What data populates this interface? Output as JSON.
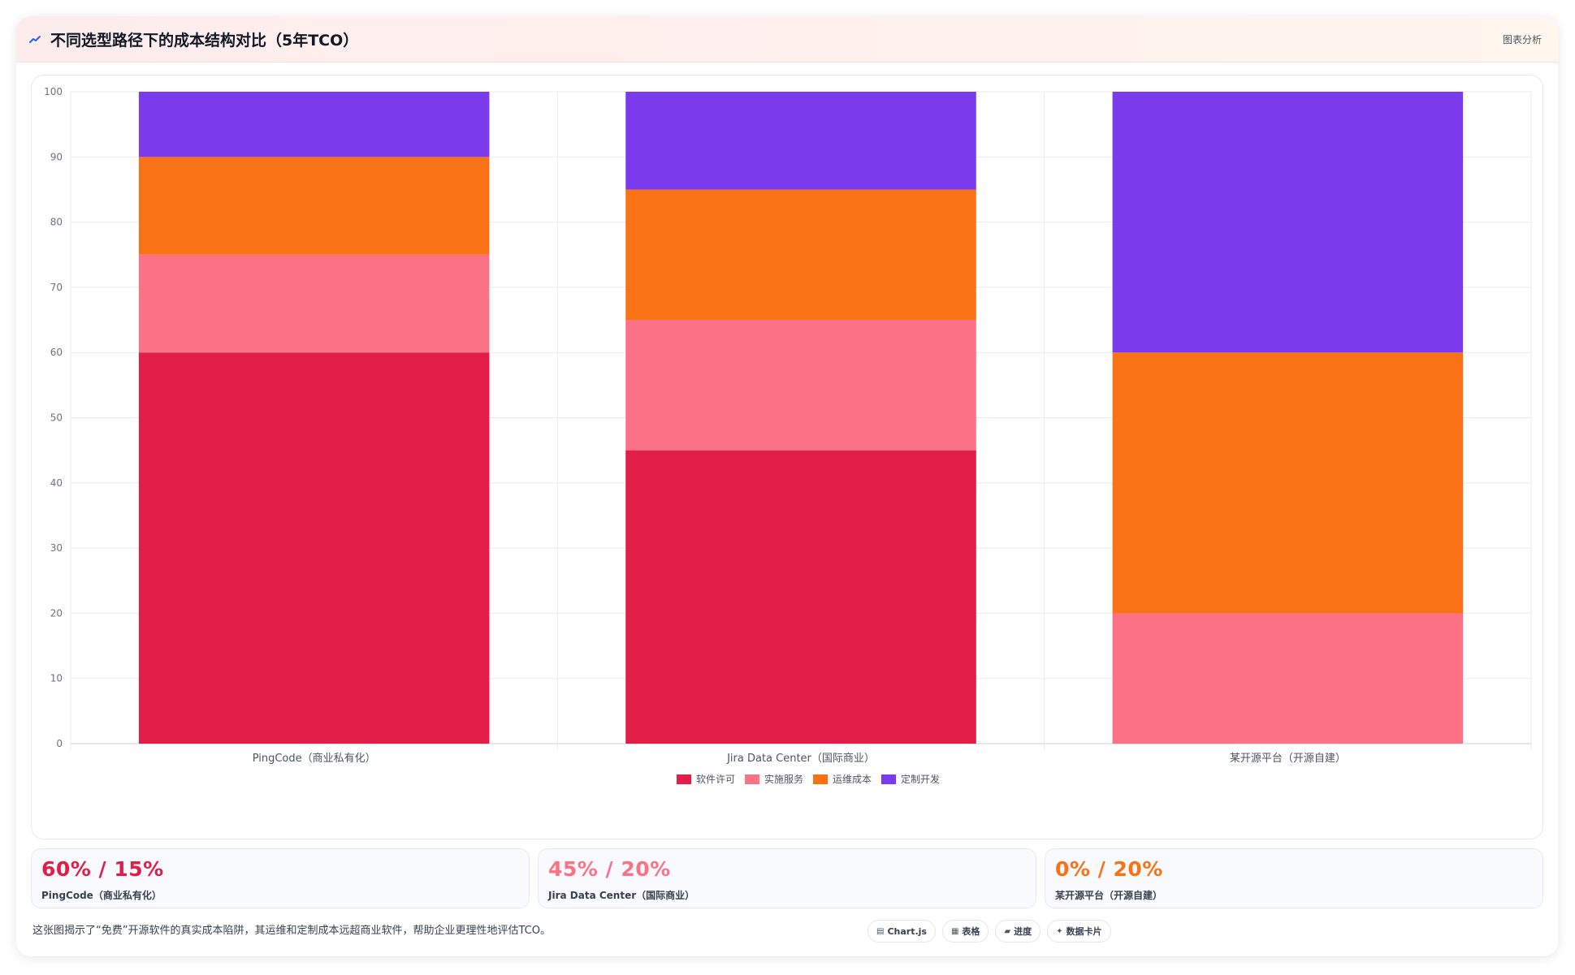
{
  "header": {
    "title": "不同选型路径下的成本结构对比（5年TCO）",
    "tag": "图表分析",
    "icon": "trend-line-icon"
  },
  "chart_data": {
    "type": "bar",
    "stacked": true,
    "categories": [
      "PingCode（商业私有化）",
      "Jira Data Center（国际商业）",
      "某开源平台（开源自建）"
    ],
    "series": [
      {
        "name": "软件许可",
        "values": [
          60,
          45,
          0
        ],
        "color": "#e11d48"
      },
      {
        "name": "实施服务",
        "values": [
          15,
          20,
          20
        ],
        "color": "#fb7185"
      },
      {
        "name": "运维成本",
        "values": [
          15,
          20,
          40
        ],
        "color": "#f97316"
      },
      {
        "name": "定制开发",
        "values": [
          10,
          15,
          40
        ],
        "color": "#7c3aed"
      }
    ],
    "ylim": [
      0,
      100
    ],
    "yticks": [
      0,
      10,
      20,
      30,
      40,
      50,
      60,
      70,
      80,
      90,
      100
    ],
    "grid": true,
    "legend": "bottom"
  },
  "stats": [
    {
      "value": "60% / 15%",
      "label": "PingCode（商业私有化）",
      "color": "#e11d48"
    },
    {
      "value": "45% / 20%",
      "label": "Jira Data Center（国际商业）",
      "color": "#fb7185"
    },
    {
      "value": "0% / 20%",
      "label": "某开源平台（开源自建）",
      "color": "#f97316"
    }
  ],
  "footer": {
    "description": "这张图揭示了“免费”开源软件的真实成本陷阱，其运维和定制成本远超商业软件，帮助企业更理性地评估TCO。",
    "pills": [
      {
        "icon": "chart-icon",
        "glyph": "▤",
        "label": "Chart.js"
      },
      {
        "icon": "table-icon",
        "glyph": "▦",
        "label": "表格"
      },
      {
        "icon": "progress-icon",
        "glyph": "▰",
        "label": "进度"
      },
      {
        "icon": "data-card-icon",
        "glyph": "✦",
        "label": "数据卡片"
      }
    ]
  }
}
